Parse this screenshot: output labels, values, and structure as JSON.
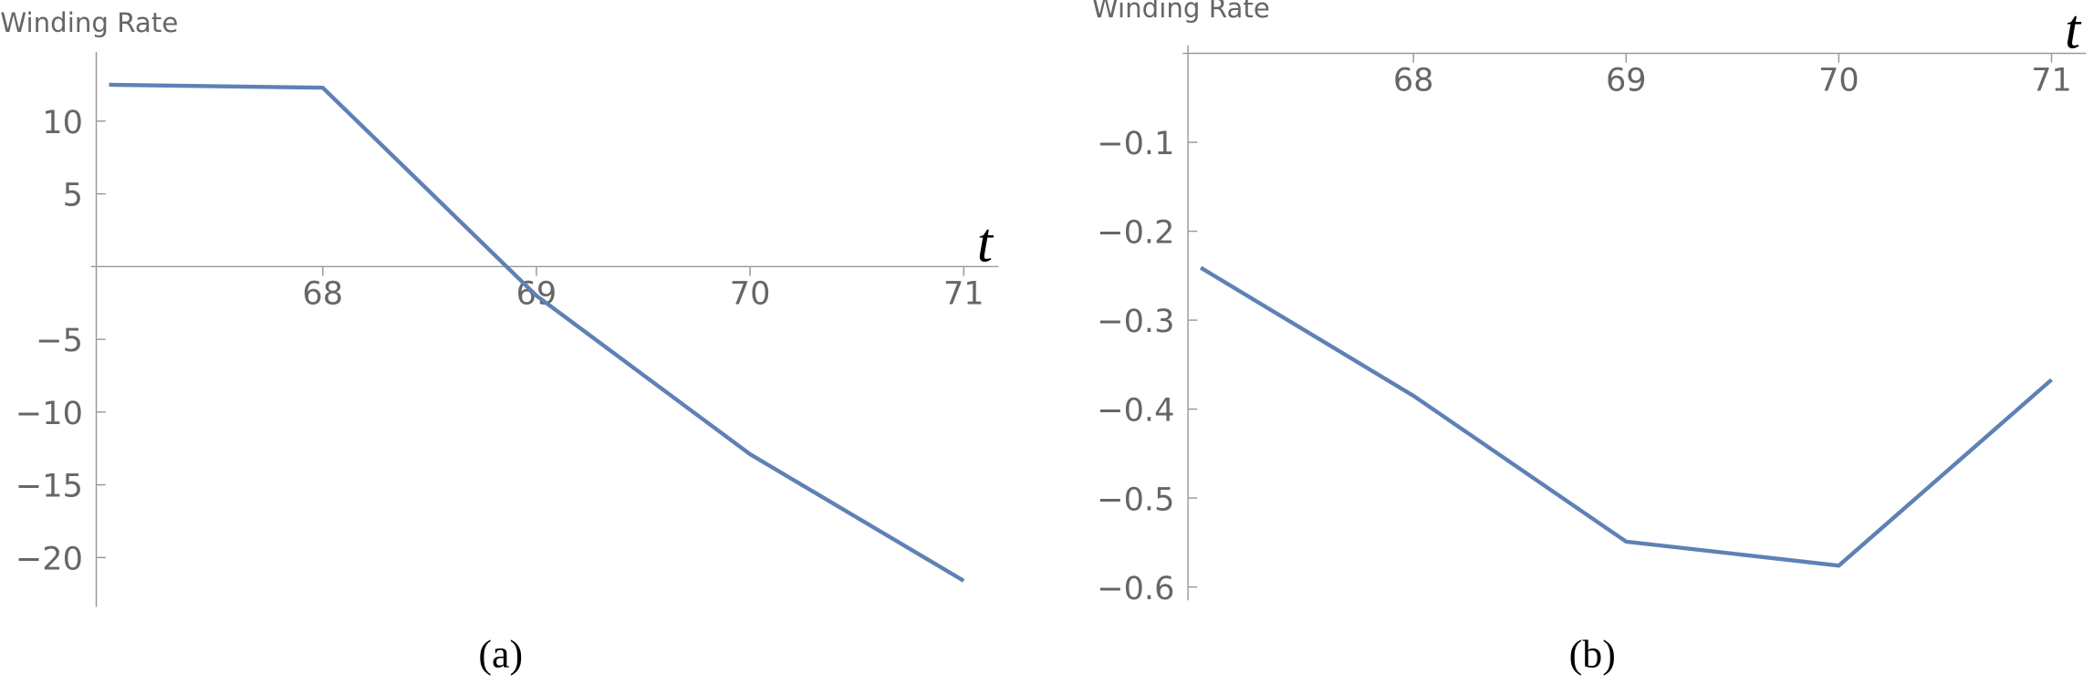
{
  "chart_data": [
    {
      "type": "line",
      "y_label": "Winding Rate",
      "x_label": "t",
      "caption": "(a)",
      "x": [
        67,
        68,
        69,
        70,
        71
      ],
      "values": [
        12.5,
        12.3,
        -2.0,
        -12.9,
        -21.6
      ],
      "color": "#5e81b5",
      "xlim": [
        66.94,
        71.1
      ],
      "ylim": [
        -23.4,
        14.2
      ],
      "xticks": [
        68,
        69,
        70,
        71
      ],
      "yticks": [
        10,
        5,
        {
          "value": -5,
          "label": "−5"
        },
        {
          "value": -10,
          "label": "−10"
        },
        {
          "value": -15,
          "label": "−15"
        },
        {
          "value": -20,
          "label": "−20"
        }
      ]
    },
    {
      "type": "line",
      "y_label": "Winding Rate",
      "x_label": "t",
      "caption": "(b)",
      "x": [
        67,
        68,
        69,
        70,
        71
      ],
      "values": [
        -0.241,
        -0.385,
        -0.549,
        -0.576,
        -0.367
      ],
      "color": "#5e81b5",
      "xlim": [
        66.94,
        71.1
      ],
      "ylim": [
        -0.615,
        0
      ],
      "xticks": [
        68,
        69,
        70,
        71
      ],
      "yticks": [
        {
          "value": -0.1,
          "label": "−0.1"
        },
        {
          "value": -0.2,
          "label": "−0.2"
        },
        {
          "value": -0.3,
          "label": "−0.3"
        },
        {
          "value": -0.4,
          "label": "−0.4"
        },
        {
          "value": -0.5,
          "label": "−0.5"
        },
        {
          "value": -0.6,
          "label": "−0.6"
        }
      ]
    }
  ]
}
